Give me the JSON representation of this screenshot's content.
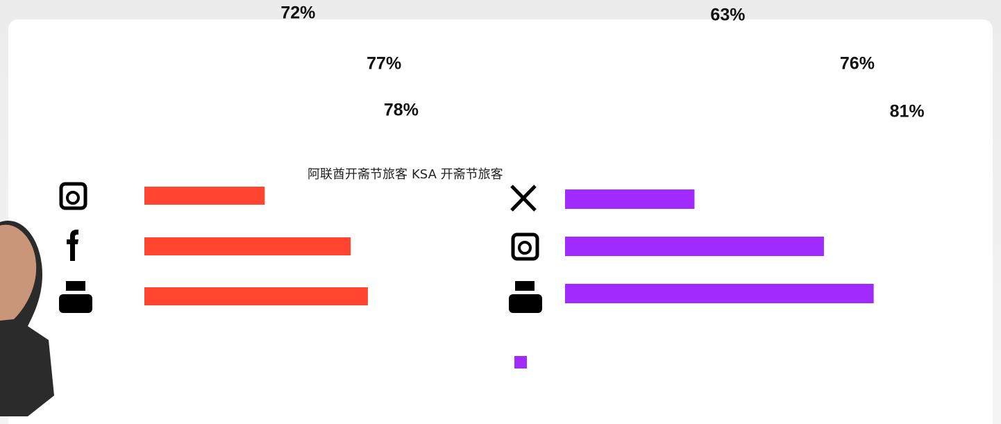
{
  "chart_data": [
    {
      "type": "bar",
      "orientation": "horizontal",
      "xlim": [
        65,
        82
      ],
      "series": [
        {
          "name": "阿联酋开斋节旅客",
          "color": "#ff4530",
          "values": [
            72,
            77,
            78
          ],
          "value_labels": [
            "72%",
            "77%",
            "78%"
          ]
        }
      ]
    },
    {
      "type": "bar",
      "orientation": "horizontal",
      "xlim": [
        50,
        85
      ],
      "series": [
        {
          "name": "KSA 开斋节旅客",
          "color": "#a12bff",
          "values": [
            63,
            76,
            81
          ],
          "value_labels": [
            "63%",
            "76%",
            "81%"
          ]
        }
      ]
    }
  ]
}
